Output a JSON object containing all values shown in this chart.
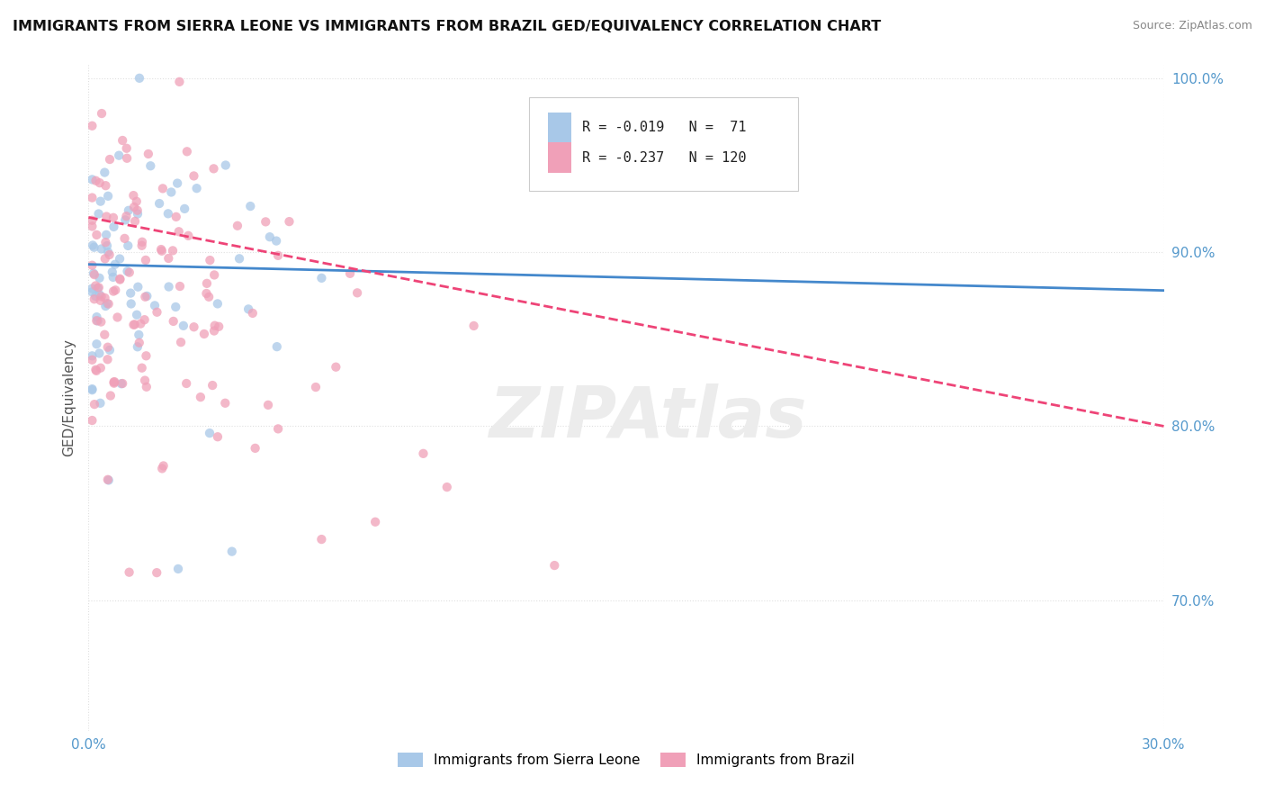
{
  "title": "IMMIGRANTS FROM SIERRA LEONE VS IMMIGRANTS FROM BRAZIL GED/EQUIVALENCY CORRELATION CHART",
  "source": "Source: ZipAtlas.com",
  "ylabel": "GED/Equivalency",
  "watermark": "ZIPAtlas",
  "xmin": 0.0,
  "xmax": 0.3,
  "ymin": 0.625,
  "ymax": 1.008,
  "yticks": [
    1.0,
    0.9,
    0.8,
    0.7
  ],
  "ytick_labels": [
    "100.0%",
    "90.0%",
    "80.0%",
    "70.0%"
  ],
  "xticks": [
    0.0,
    0.3
  ],
  "xtick_labels": [
    "0.0%",
    "30.0%"
  ],
  "color_sierra": "#a8c8e8",
  "color_brazil": "#f0a0b8",
  "trendline_sierra_color": "#4488cc",
  "trendline_brazil_color": "#ee4477",
  "trendline_sierra_dashed_color": "#99bbdd",
  "background_color": "#ffffff",
  "grid_color": "#e0e0e0",
  "sierra_leone_label": "Immigrants from Sierra Leone",
  "brazil_label": "Immigrants from Brazil",
  "legend_R1_val": "-0.019",
  "legend_N1_val": "71",
  "legend_R2_val": "-0.237",
  "legend_N2_val": "120",
  "sierra_trendline_x0": 0.0,
  "sierra_trendline_y0": 0.893,
  "sierra_trendline_x1": 0.3,
  "sierra_trendline_y1": 0.878,
  "brazil_trendline_x0": 0.0,
  "brazil_trendline_y0": 0.92,
  "brazil_trendline_x1": 0.3,
  "brazil_trendline_y1": 0.8
}
